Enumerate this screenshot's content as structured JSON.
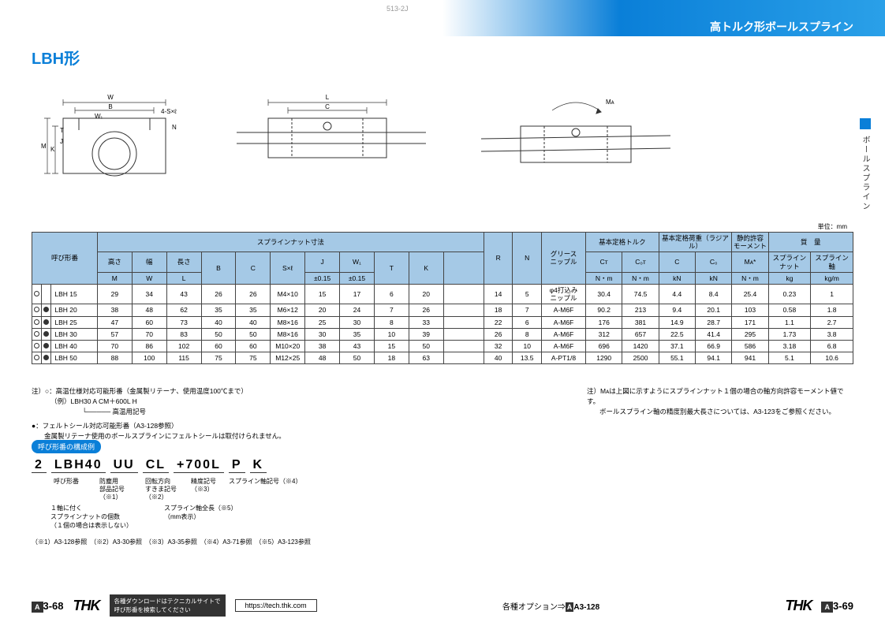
{
  "pageHeaderLeft": "513-2J",
  "pageHeaderRight": "513-2J",
  "headerTitle": "高トルク形ボールスプライン",
  "sideTab": "ボールスプライン",
  "title": "LBH形",
  "unit": "単位：mm",
  "tableHeaders": {
    "model": "呼び形番",
    "nutDim": "スプラインナット寸法",
    "height": "高さ",
    "width": "幅",
    "length": "長さ",
    "M": "M",
    "W": "W",
    "L": "L",
    "B": "B",
    "C": "C",
    "Sxl": "S×ℓ",
    "J": "J",
    "JTol": "±0.15",
    "W1": "W₁",
    "W1Tol": "±0.15",
    "T": "T",
    "K": "K",
    "R": "R",
    "N": "N",
    "grease": "グリース\nニップル",
    "torque": "基本定格トルク",
    "radial": "基本定格荷重（ラジアル）",
    "moment": "静的許容\nモーメント",
    "mass": "質　量",
    "CT": "Cᴛ",
    "CTu": "N・m",
    "C0T": "C₀ᴛ",
    "C0Tu": "N・m",
    "Cr": "C",
    "Cru": "kN",
    "C0": "C₀",
    "C0u": "kN",
    "MA": "Mᴀ*",
    "MAu": "N・m",
    "nutMass": "スプラインナット",
    "nutMassU": "kg",
    "shaftMass": "スプライン軸",
    "shaftMassU": "kg/m"
  },
  "rows": [
    {
      "m1": "○",
      "m2": "",
      "name": "LBH 15",
      "M": "29",
      "W": "34",
      "L": "43",
      "B": "26",
      "C": "26",
      "Sxl": "M4×10",
      "J": "15",
      "W1": "17",
      "T": "6",
      "K": "20",
      "R": "14",
      "N": "5",
      "grease": "φ4打込み\nニップル",
      "CT": "30.4",
      "C0T": "74.5",
      "Cr": "4.4",
      "C0": "8.4",
      "MA": "25.4",
      "mN": "0.23",
      "mS": "1"
    },
    {
      "m1": "○",
      "m2": "●",
      "name": "LBH 20",
      "M": "38",
      "W": "48",
      "L": "62",
      "B": "35",
      "C": "35",
      "Sxl": "M6×12",
      "J": "20",
      "W1": "24",
      "T": "7",
      "K": "26",
      "R": "18",
      "N": "7",
      "grease": "A-M6F",
      "CT": "90.2",
      "C0T": "213",
      "Cr": "9.4",
      "C0": "20.1",
      "MA": "103",
      "mN": "0.58",
      "mS": "1.8"
    },
    {
      "m1": "○",
      "m2": "●",
      "name": "LBH 25",
      "M": "47",
      "W": "60",
      "L": "73",
      "B": "40",
      "C": "40",
      "Sxl": "M8×16",
      "J": "25",
      "W1": "30",
      "T": "8",
      "K": "33",
      "R": "22",
      "N": "6",
      "grease": "A-M6F",
      "CT": "176",
      "C0T": "381",
      "Cr": "14.9",
      "C0": "28.7",
      "MA": "171",
      "mN": "1.1",
      "mS": "2.7"
    },
    {
      "m1": "○",
      "m2": "●",
      "name": "LBH 30",
      "M": "57",
      "W": "70",
      "L": "83",
      "B": "50",
      "C": "50",
      "Sxl": "M8×16",
      "J": "30",
      "W1": "35",
      "T": "10",
      "K": "39",
      "R": "26",
      "N": "8",
      "grease": "A-M6F",
      "CT": "312",
      "C0T": "657",
      "Cr": "22.5",
      "C0": "41.4",
      "MA": "295",
      "mN": "1.73",
      "mS": "3.8"
    },
    {
      "m1": "○",
      "m2": "●",
      "name": "LBH 40",
      "M": "70",
      "W": "86",
      "L": "102",
      "B": "60",
      "C": "60",
      "Sxl": "M10×20",
      "J": "38",
      "W1": "43",
      "T": "15",
      "K": "50",
      "R": "32",
      "N": "10",
      "grease": "A-M6F",
      "CT": "696",
      "C0T": "1420",
      "Cr": "37.1",
      "C0": "66.9",
      "MA": "586",
      "mN": "3.18",
      "mS": "6.8"
    },
    {
      "m1": "○",
      "m2": "●",
      "name": "LBH 50",
      "M": "88",
      "W": "100",
      "L": "115",
      "B": "75",
      "C": "75",
      "Sxl": "M12×25",
      "J": "48",
      "W1": "50",
      "T": "18",
      "K": "63",
      "R": "40",
      "N": "13.5",
      "grease": "A-PT1/8",
      "CT": "1290",
      "C0T": "2500",
      "Cr": "55.1",
      "C0": "94.1",
      "MA": "941",
      "mN": "5.1",
      "mS": "10.6"
    }
  ],
  "noteL1": "注）○：高温仕様対応可能形番（金属製リテーナ、使用温度100℃まで）",
  "noteL2": "（例）LBH30 A CM＋600L H",
  "noteL3": "└───── 高温用記号",
  "noteL4": "●：フェルトシール対応可能形番（A3-128参照）",
  "noteL5": "金属製リテーナ使用のボールスプラインにフェルトシールは取付けられません。",
  "noteR1": "注）Mᴀは上図に示すようにスプラインナット１個の場合の軸方向許容モーメント値です。",
  "noteR2": "ボールスプライン軸の精度別最大長さについては、A3-123をご参照ください。",
  "configBadge": "呼び形番の構成例",
  "config": {
    "p1": "2",
    "p2": "LBH40",
    "p3": "UU",
    "p4": "CL",
    "p5": "+700L",
    "p6": "P",
    "p7": "K"
  },
  "configLabels": {
    "l2": "呼び形番",
    "l3": "防塵用\n部品記号\n（※1）",
    "l4": "回転方向\nすきま記号\n（※2）",
    "l5tol": "精度記号\n（※3）",
    "l5shaft": "スプライン軸記号（※4）",
    "sub1": "１軸に付く\nスプラインナットの個数\n（１個の場合は表示しない）",
    "sub2": "スプライン軸全長（※5）\n（mm表示）"
  },
  "refs": "（※1）A3-128参照　（※2）A3-30参照　（※3）A3-35参照　（※4）A3-71参照　（※5）A3-123参照",
  "footer": {
    "pgL": "3-68",
    "pgR": "3-69",
    "logo": "THK",
    "dlText": "各種ダウンロードはテクニカルサイトで\n呼び形番を検索してください",
    "dlUrl": "https://tech.thk.com",
    "options": "各種オプション⇒",
    "optRef": "A3-128"
  },
  "diagLabels": {
    "W": "W",
    "B": "B",
    "W1": "W₁",
    "Sxl": "4-S×ℓ",
    "N": "N",
    "J": "J",
    "T": "T",
    "K": "K",
    "M": "M",
    "L": "L",
    "C": "C",
    "MA": "Mᴀ"
  }
}
